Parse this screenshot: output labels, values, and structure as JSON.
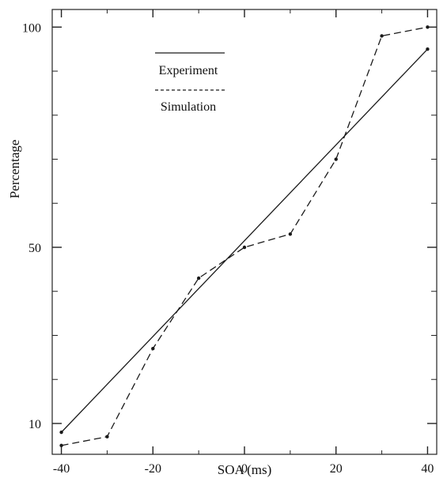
{
  "chart_data": {
    "type": "line",
    "xlabel": "SOA (ms)",
    "ylabel": "Percentage",
    "x_ticks": [
      -40,
      -20,
      0,
      20,
      40
    ],
    "x_tick_labels": [
      "-40",
      "-20",
      "0",
      "20",
      "40"
    ],
    "y_ticks": [
      10,
      50,
      100
    ],
    "y_tick_labels": [
      "10",
      "50",
      "100"
    ],
    "xlim": [
      -42,
      42
    ],
    "ylim": [
      3,
      104
    ],
    "grid": false,
    "legend_position": "top-left",
    "series": [
      {
        "name": "Experiment",
        "line_style": "solid",
        "x": [
          -40,
          40
        ],
        "y": [
          8,
          95
        ]
      },
      {
        "name": "Simulation",
        "line_style": "dashed",
        "x": [
          -40,
          -30,
          -20,
          -10,
          0,
          10,
          20,
          30,
          40
        ],
        "y": [
          5,
          7,
          27,
          43,
          50,
          53,
          70,
          98,
          100
        ]
      }
    ],
    "colors": {
      "lines": "#1a1a1a",
      "axes": "#222222"
    }
  }
}
